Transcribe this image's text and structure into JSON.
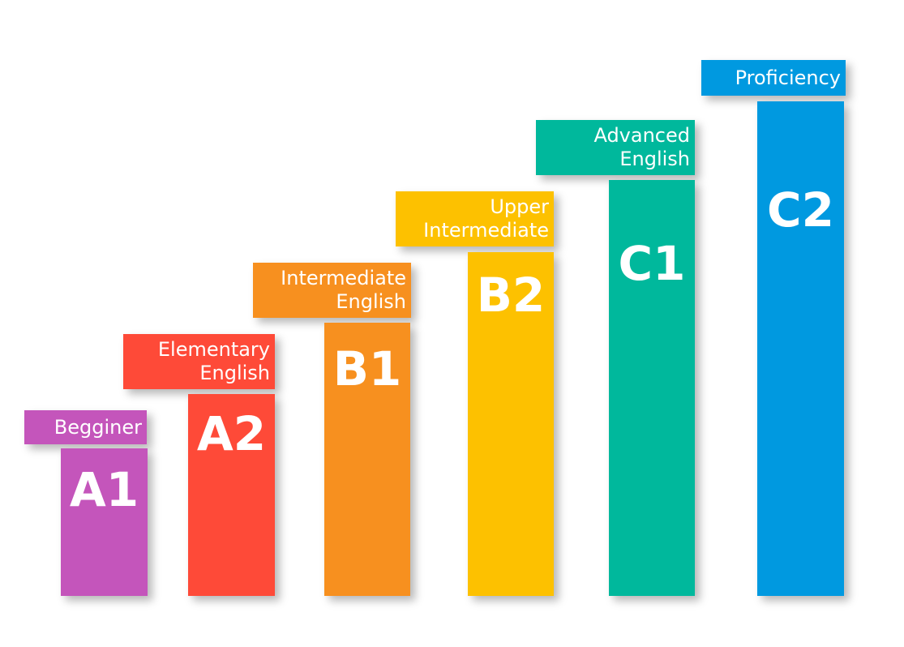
{
  "colors": {
    "a1": "#c455bb",
    "a2": "#fe4a38",
    "b1": "#f7901f",
    "b2": "#fdc100",
    "c1": "#00b89c",
    "c2": "#0099e0",
    "text": "#ffffff"
  },
  "levels": [
    {
      "code": "A1",
      "label_lines": [
        "Begginer"
      ]
    },
    {
      "code": "A2",
      "label_lines": [
        "Elementary",
        "English"
      ]
    },
    {
      "code": "B1",
      "label_lines": [
        "Intermediate",
        "English"
      ]
    },
    {
      "code": "B2",
      "label_lines": [
        "Upper",
        "Intermediate"
      ]
    },
    {
      "code": "C1",
      "label_lines": [
        "Advanced",
        "English"
      ]
    },
    {
      "code": "C2",
      "label_lines": [
        "Proficiency"
      ]
    }
  ]
}
